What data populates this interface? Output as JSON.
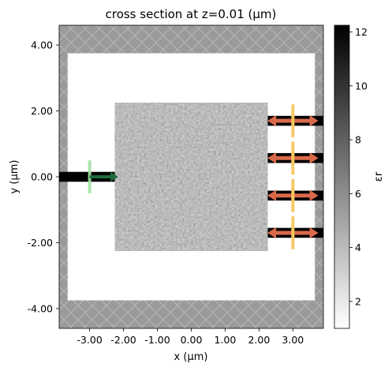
{
  "chart_data": {
    "type": "heatmap",
    "title": "cross section at z=0.01 (μm)",
    "xlabel": "x (μm)",
    "ylabel": "y (μm)",
    "xlim": [
      -3.9,
      3.9
    ],
    "ylim": [
      -4.6,
      4.6
    ],
    "x_ticks": [
      -3.0,
      -2.0,
      -1.0,
      0.0,
      1.0,
      2.0,
      3.0
    ],
    "x_tick_labels": [
      "-3.00",
      "-2.00",
      "-1.00",
      "0.00",
      "1.00",
      "2.00",
      "3.00"
    ],
    "y_ticks": [
      4.0,
      2.0,
      0.0,
      -2.0,
      -4.0
    ],
    "y_tick_labels": [
      "4.00",
      "2.00",
      "0.00",
      "-2.00",
      "-4.00"
    ],
    "colorbar": {
      "label": "εr",
      "range": [
        1.0,
        12.25
      ],
      "ticks": [
        2,
        4,
        6,
        8,
        10,
        12
      ],
      "tick_labels": [
        "2",
        "4",
        "6",
        "8",
        "10",
        "12"
      ],
      "colormap": "gray_r"
    },
    "structures": {
      "design_region": {
        "x": [
          -2.25,
          2.25
        ],
        "y": [
          -2.25,
          2.25
        ],
        "mean_eps": 7.6
      },
      "input_waveguide": {
        "x": [
          -3.9,
          -2.25
        ],
        "y_center": 0.0,
        "width": 0.3,
        "eps": 12.25
      },
      "output_waveguides": [
        {
          "x": [
            2.25,
            3.9
          ],
          "y_center": 1.7,
          "width": 0.3,
          "eps": 12.25
        },
        {
          "x": [
            2.25,
            3.9
          ],
          "y_center": 0.57,
          "width": 0.3,
          "eps": 12.25
        },
        {
          "x": [
            2.25,
            3.9
          ],
          "y_center": -0.57,
          "width": 0.3,
          "eps": 12.25
        },
        {
          "x": [
            2.25,
            3.9
          ],
          "y_center": -1.7,
          "width": 0.3,
          "eps": 12.25
        }
      ],
      "pml_boundaries": [
        {
          "side": "top",
          "y": [
            3.75,
            4.6
          ]
        },
        {
          "side": "bottom",
          "y": [
            -4.6,
            -3.75
          ]
        },
        {
          "side": "left",
          "x": [
            -3.9,
            -3.65
          ]
        },
        {
          "side": "right",
          "x": [
            3.65,
            3.9
          ]
        }
      ],
      "source": {
        "x": -3.0,
        "y": [
          -0.5,
          0.5
        ],
        "direction": "+x",
        "color": "#a3e3a3"
      },
      "monitors": [
        {
          "x": 3.0,
          "y_center": 1.7,
          "span": 1.0,
          "color": "#f7c860"
        },
        {
          "x": 3.0,
          "y_center": 0.57,
          "span": 1.0,
          "color": "#f7c860"
        },
        {
          "x": 3.0,
          "y_center": -0.57,
          "span": 1.0,
          "color": "#f7c860"
        },
        {
          "x": 3.0,
          "y_center": -1.7,
          "span": 1.0,
          "color": "#f7c860"
        }
      ]
    }
  }
}
